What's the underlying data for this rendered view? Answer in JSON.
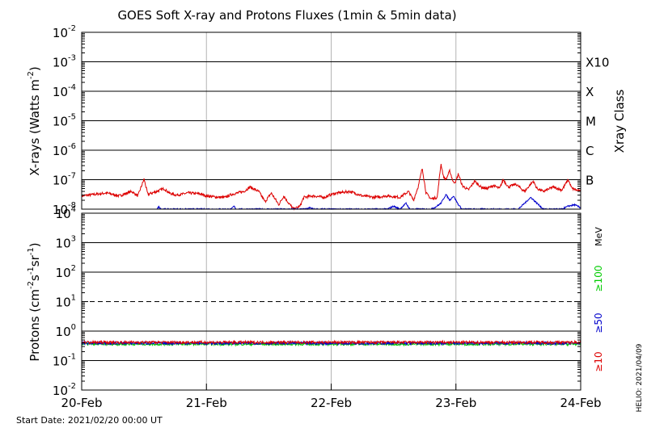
{
  "chart_data": {
    "type": "line",
    "title": "GOES Soft X-ray and Protons Fluxes   (1min & 5min data)",
    "footer": {
      "start_date": "Start Date: 2021/02/20 00:00 UT",
      "stamp": "HELIO: 2021/04/09"
    },
    "x_axis": {
      "labels": [
        "20-Feb",
        "21-Feb",
        "22-Feb",
        "23-Feb",
        "24-Feb"
      ],
      "range_days": [
        0,
        4
      ]
    },
    "xray_panel": {
      "ylabel": "X-rays (Watts m",
      "ylabel_sup": "-2",
      "ylabel_close": ")",
      "scale": "log",
      "ylim_exp": [
        -8,
        -2
      ],
      "tick_exponents": [
        -2,
        -3,
        -4,
        -5,
        -6,
        -7,
        -8
      ],
      "right_axis_title": "Xray Class",
      "class_labels": [
        {
          "label": "X10",
          "exp": -3
        },
        {
          "label": "X",
          "exp": -4
        },
        {
          "label": "M",
          "exp": -5
        },
        {
          "label": "C",
          "exp": -6
        },
        {
          "label": "B",
          "exp": -7
        }
      ],
      "series": [
        {
          "color": "#dd0000",
          "points": [
            [
              0.0,
              -7.55
            ],
            [
              0.1,
              -7.5
            ],
            [
              0.2,
              -7.45
            ],
            [
              0.3,
              -7.55
            ],
            [
              0.4,
              -7.4
            ],
            [
              0.45,
              -7.55
            ],
            [
              0.5,
              -6.98
            ],
            [
              0.53,
              -7.5
            ],
            [
              0.6,
              -7.4
            ],
            [
              0.66,
              -7.3
            ],
            [
              0.7,
              -7.45
            ],
            [
              0.75,
              -7.52
            ],
            [
              0.8,
              -7.5
            ],
            [
              0.85,
              -7.45
            ],
            [
              0.95,
              -7.48
            ],
            [
              1.0,
              -7.55
            ],
            [
              1.1,
              -7.6
            ],
            [
              1.15,
              -7.6
            ],
            [
              1.2,
              -7.5
            ],
            [
              1.3,
              -7.4
            ],
            [
              1.35,
              -7.25
            ],
            [
              1.42,
              -7.4
            ],
            [
              1.47,
              -7.75
            ],
            [
              1.52,
              -7.45
            ],
            [
              1.58,
              -7.85
            ],
            [
              1.62,
              -7.55
            ],
            [
              1.66,
              -7.8
            ],
            [
              1.7,
              -8.0
            ],
            [
              1.75,
              -7.9
            ],
            [
              1.78,
              -7.6
            ],
            [
              1.85,
              -7.55
            ],
            [
              1.95,
              -7.6
            ],
            [
              2.0,
              -7.5
            ],
            [
              2.05,
              -7.45
            ],
            [
              2.15,
              -7.4
            ],
            [
              2.25,
              -7.55
            ],
            [
              2.35,
              -7.6
            ],
            [
              2.45,
              -7.55
            ],
            [
              2.55,
              -7.6
            ],
            [
              2.62,
              -7.4
            ],
            [
              2.66,
              -7.7
            ],
            [
              2.7,
              -7.2
            ],
            [
              2.73,
              -6.6
            ],
            [
              2.76,
              -7.45
            ],
            [
              2.8,
              -7.65
            ],
            [
              2.85,
              -7.6
            ],
            [
              2.88,
              -6.45
            ],
            [
              2.9,
              -6.9
            ],
            [
              2.92,
              -7.0
            ],
            [
              2.95,
              -6.7
            ],
            [
              2.98,
              -7.1
            ],
            [
              3.0,
              -7.05
            ],
            [
              3.02,
              -6.8
            ],
            [
              3.05,
              -7.2
            ],
            [
              3.1,
              -7.35
            ],
            [
              3.15,
              -7.05
            ],
            [
              3.2,
              -7.25
            ],
            [
              3.25,
              -7.3
            ],
            [
              3.3,
              -7.2
            ],
            [
              3.35,
              -7.3
            ],
            [
              3.38,
              -7.0
            ],
            [
              3.42,
              -7.25
            ],
            [
              3.48,
              -7.15
            ],
            [
              3.55,
              -7.4
            ],
            [
              3.62,
              -7.05
            ],
            [
              3.65,
              -7.3
            ],
            [
              3.7,
              -7.4
            ],
            [
              3.78,
              -7.25
            ],
            [
              3.85,
              -7.35
            ],
            [
              3.9,
              -7.0
            ],
            [
              3.93,
              -7.3
            ],
            [
              4.0,
              -7.4
            ]
          ]
        },
        {
          "color": "#0000cc",
          "points": [
            [
              0.6,
              -8.0
            ],
            [
              0.62,
              -7.92
            ],
            [
              0.64,
              -8.0
            ],
            [
              1.2,
              -8.0
            ],
            [
              1.22,
              -7.9
            ],
            [
              1.24,
              -8.0
            ],
            [
              1.8,
              -8.0
            ],
            [
              1.83,
              -7.95
            ],
            [
              1.86,
              -8.0
            ],
            [
              2.45,
              -8.0
            ],
            [
              2.5,
              -7.9
            ],
            [
              2.55,
              -8.0
            ],
            [
              2.6,
              -7.8
            ],
            [
              2.63,
              -8.0
            ],
            [
              2.8,
              -8.0
            ],
            [
              2.84,
              -7.92
            ],
            [
              2.88,
              -7.8
            ],
            [
              2.92,
              -7.5
            ],
            [
              2.95,
              -7.7
            ],
            [
              2.98,
              -7.55
            ],
            [
              3.02,
              -7.85
            ],
            [
              3.05,
              -8.0
            ],
            [
              3.5,
              -8.0
            ],
            [
              3.55,
              -7.8
            ],
            [
              3.6,
              -7.6
            ],
            [
              3.65,
              -7.8
            ],
            [
              3.7,
              -8.0
            ],
            [
              3.85,
              -8.0
            ],
            [
              3.9,
              -7.9
            ],
            [
              3.95,
              -7.85
            ],
            [
              4.0,
              -7.95
            ]
          ]
        }
      ]
    },
    "proton_panel": {
      "ylabel": "Protons (cm",
      "ylabel_sup1": "-2",
      "ylabel_mid": "s",
      "ylabel_sup2": "-1",
      "ylabel_tail": "sr",
      "ylabel_sup3": "-1",
      "ylabel_close": ")",
      "scale": "log",
      "ylim_exp": [
        -2,
        4
      ],
      "tick_exponents": [
        4,
        3,
        2,
        1,
        0,
        -1,
        -2
      ],
      "dashed_threshold_exp": 1,
      "unit_label": "MeV",
      "energy_labels": [
        {
          "label": "≥10",
          "color": "#dd0000"
        },
        {
          "label": "≥50",
          "color": "#0000cc"
        },
        {
          "label": "≥100",
          "color": "#00cc00"
        }
      ],
      "series": [
        {
          "name": "≥10",
          "color": "#dd0000",
          "mean_exp": -0.38
        },
        {
          "name": "≥50",
          "color": "#0000cc",
          "mean_exp": -0.41
        },
        {
          "name": "≥100",
          "color": "#00cc00",
          "mean_exp": -0.44
        }
      ]
    }
  }
}
